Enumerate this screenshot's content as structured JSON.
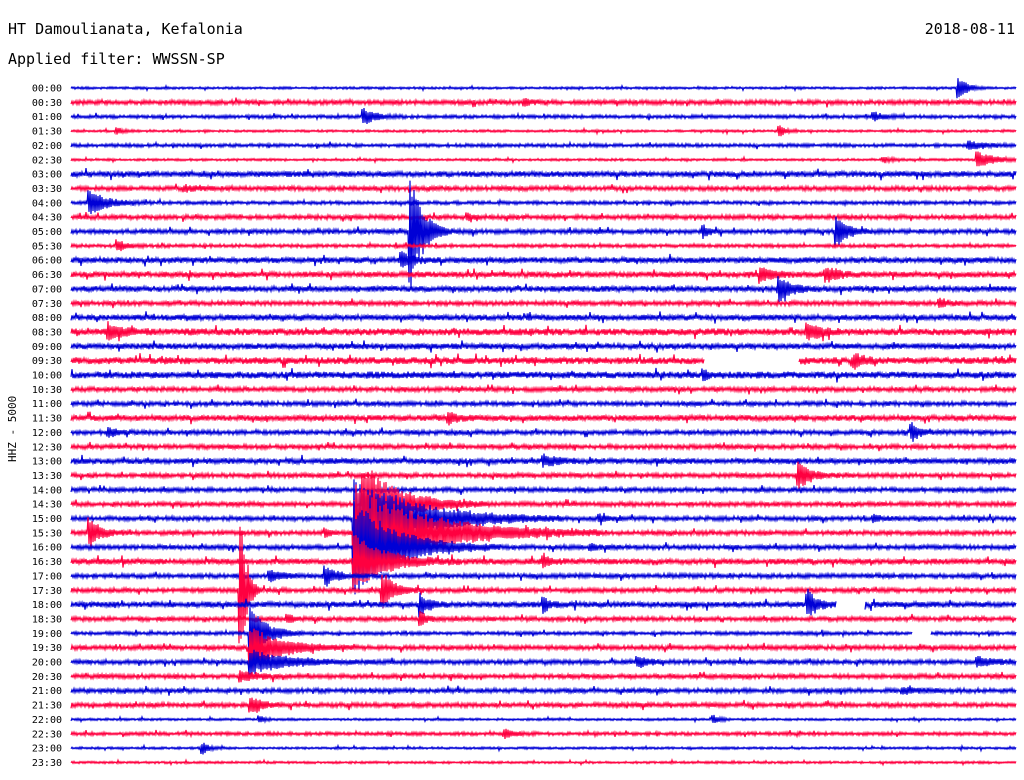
{
  "header": {
    "station": "HT Damoulianata, Kefalonia",
    "date": "2018-08-11",
    "filter": "Applied filter: WWSSN-SP"
  },
  "channel_label": "HHZ - 5000",
  "colors": {
    "odd": "#0000d6",
    "even": "#ff0040"
  },
  "chart_data": {
    "type": "line",
    "title": "",
    "xlabel": "",
    "ylabel": "HHZ - 5000",
    "rows": [
      {
        "time": "00:00",
        "noise": 1,
        "events": [
          [
            0.94,
            10,
            1.5
          ]
        ]
      },
      {
        "time": "00:30",
        "noise": 2,
        "events": [
          [
            0.48,
            3,
            1.5
          ]
        ]
      },
      {
        "time": "01:00",
        "noise": 1.5,
        "events": [
          [
            0.31,
            9,
            2
          ],
          [
            0.85,
            4,
            1.5
          ]
        ]
      },
      {
        "time": "01:30",
        "noise": 1,
        "events": [
          [
            0.05,
            3,
            1
          ],
          [
            0.75,
            6,
            1
          ]
        ]
      },
      {
        "time": "02:00",
        "noise": 1.5,
        "events": [
          [
            0.95,
            4,
            3
          ]
        ]
      },
      {
        "time": "02:30",
        "noise": 1,
        "events": [
          [
            0.96,
            8,
            3
          ],
          [
            0.86,
            3,
            1.5
          ]
        ]
      },
      {
        "time": "03:00",
        "noise": 2.5,
        "events": []
      },
      {
        "time": "03:30",
        "noise": 2,
        "events": [
          [
            0.12,
            3,
            2
          ]
        ]
      },
      {
        "time": "04:00",
        "noise": 1.5,
        "events": [
          [
            0.02,
            12,
            3
          ]
        ]
      },
      {
        "time": "04:30",
        "noise": 2,
        "events": [
          [
            0.42,
            3,
            1
          ]
        ]
      },
      {
        "time": "05:00",
        "noise": 2,
        "events": [
          [
            0.36,
            60,
            2
          ],
          [
            0.81,
            16,
            2
          ],
          [
            0.67,
            6,
            1
          ]
        ]
      },
      {
        "time": "05:30",
        "noise": 1.5,
        "events": [
          [
            0.05,
            5,
            1.5
          ]
        ]
      },
      {
        "time": "06:00",
        "noise": 2.5,
        "events": [
          [
            0.35,
            8,
            2
          ]
        ]
      },
      {
        "time": "06:30",
        "noise": 2.5,
        "events": [
          [
            0.73,
            8,
            2
          ],
          [
            0.8,
            8,
            2
          ]
        ]
      },
      {
        "time": "07:00",
        "noise": 2.5,
        "events": [
          [
            0.75,
            12,
            2
          ]
        ]
      },
      {
        "time": "07:30",
        "noise": 2,
        "events": [
          [
            0.92,
            4,
            1.5
          ]
        ]
      },
      {
        "time": "08:00",
        "noise": 2.5,
        "events": []
      },
      {
        "time": "08:30",
        "noise": 3,
        "events": [
          [
            0.04,
            7,
            2.5
          ],
          [
            0.78,
            8,
            2
          ]
        ]
      },
      {
        "time": "09:00",
        "noise": 2.5,
        "events": []
      },
      {
        "time": "09:30",
        "noise": 3,
        "events": [
          [
            0.83,
            7,
            1.5
          ]
        ],
        "gap": [
          0.67,
          0.77
        ]
      },
      {
        "time": "10:00",
        "noise": 3,
        "events": [
          [
            0.67,
            5,
            1
          ]
        ]
      },
      {
        "time": "10:30",
        "noise": 2,
        "events": []
      },
      {
        "time": "11:00",
        "noise": 2,
        "events": []
      },
      {
        "time": "11:30",
        "noise": 2.5,
        "events": [
          [
            0.4,
            5,
            2
          ]
        ]
      },
      {
        "time": "12:00",
        "noise": 2,
        "events": [
          [
            0.89,
            9,
            1.5
          ],
          [
            0.04,
            4,
            2
          ]
        ]
      },
      {
        "time": "12:30",
        "noise": 2,
        "events": []
      },
      {
        "time": "13:00",
        "noise": 2.5,
        "events": [
          [
            0.5,
            6,
            2
          ]
        ]
      },
      {
        "time": "13:30",
        "noise": 2,
        "events": [
          [
            0.77,
            14,
            2
          ]
        ]
      },
      {
        "time": "14:00",
        "noise": 2,
        "events": []
      },
      {
        "time": "14:30",
        "noise": 2,
        "events": [
          [
            0.31,
            40,
            6
          ]
        ]
      },
      {
        "time": "15:00",
        "noise": 2,
        "events": [
          [
            0.3,
            45,
            10
          ],
          [
            0.56,
            3,
            1.5
          ],
          [
            0.85,
            3,
            1.5
          ]
        ]
      },
      {
        "time": "15:30",
        "noise": 2,
        "events": [
          [
            0.02,
            14,
            2
          ],
          [
            0.3,
            50,
            12
          ],
          [
            0.27,
            5,
            1
          ]
        ]
      },
      {
        "time": "16:00",
        "noise": 2,
        "events": [
          [
            0.3,
            50,
            7
          ],
          [
            0.55,
            3,
            1.5
          ]
        ]
      },
      {
        "time": "16:30",
        "noise": 2.5,
        "events": [
          [
            0.3,
            30,
            5
          ],
          [
            0.5,
            6,
            1.5
          ]
        ]
      },
      {
        "time": "17:00",
        "noise": 2,
        "events": [
          [
            0.27,
            10,
            2
          ],
          [
            0.21,
            6,
            2
          ]
        ]
      },
      {
        "time": "17:30",
        "noise": 2,
        "events": [
          [
            0.33,
            18,
            2
          ],
          [
            0.18,
            70,
            1
          ]
        ]
      },
      {
        "time": "18:00",
        "noise": 2.5,
        "events": [
          [
            0.37,
            10,
            1.5
          ],
          [
            0.5,
            8,
            1
          ],
          [
            0.78,
            14,
            1.5
          ]
        ],
        "gap": [
          0.81,
          0.84
        ]
      },
      {
        "time": "18:30",
        "noise": 2,
        "events": [
          [
            0.37,
            8,
            1
          ],
          [
            0.23,
            4,
            1
          ]
        ]
      },
      {
        "time": "19:00",
        "noise": 1.5,
        "events": [
          [
            0.19,
            30,
            2.5
          ]
        ],
        "gap": [
          0.89,
          0.91
        ]
      },
      {
        "time": "19:30",
        "noise": 2,
        "events": [
          [
            0.19,
            22,
            5
          ]
        ]
      },
      {
        "time": "20:00",
        "noise": 2,
        "events": [
          [
            0.19,
            12,
            6
          ],
          [
            0.6,
            5,
            2
          ],
          [
            0.96,
            5,
            3
          ]
        ]
      },
      {
        "time": "20:30",
        "noise": 2,
        "events": [
          [
            0.18,
            5,
            3
          ]
        ]
      },
      {
        "time": "21:00",
        "noise": 2,
        "events": [
          [
            0.88,
            3,
            3
          ]
        ]
      },
      {
        "time": "21:30",
        "noise": 2,
        "events": [
          [
            0.19,
            8,
            2
          ]
        ]
      },
      {
        "time": "22:00",
        "noise": 1,
        "events": [
          [
            0.2,
            3,
            1
          ],
          [
            0.68,
            4,
            1
          ]
        ]
      },
      {
        "time": "22:30",
        "noise": 1.5,
        "events": [
          [
            0.46,
            4,
            1.5
          ]
        ]
      },
      {
        "time": "23:00",
        "noise": 1,
        "events": [
          [
            0.14,
            6,
            1
          ]
        ]
      },
      {
        "time": "23:30",
        "noise": 1,
        "events": []
      }
    ]
  }
}
